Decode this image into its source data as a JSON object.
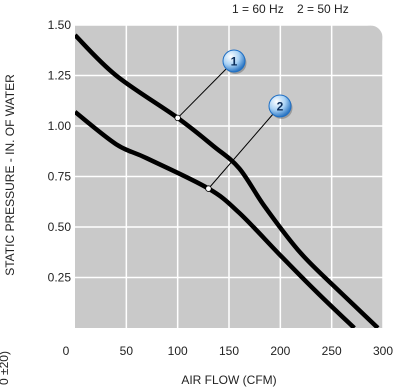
{
  "chart_data": {
    "type": "line",
    "xlabel": "AIR FLOW (CFM)",
    "ylabel": "STATIC PRESSURE - IN. OF WATER",
    "xlim": [
      0,
      300
    ],
    "ylim": [
      0,
      1.5
    ],
    "x_ticks": [
      "0",
      "50",
      "100",
      "150",
      "200",
      "250",
      "300"
    ],
    "y_ticks": [
      "1.50",
      "1.25",
      "1.00",
      "0.75",
      "0.50",
      "0.25"
    ],
    "grid": true,
    "legend": [
      {
        "key": "1",
        "text": "1 = 60 Hz"
      },
      {
        "key": "2",
        "text": "2 = 50 Hz"
      }
    ],
    "edge_text": "0 ±20)",
    "series": [
      {
        "key": "1",
        "points": [
          [
            0,
            1.45
          ],
          [
            40,
            1.25
          ],
          [
            100,
            1.04
          ],
          [
            135,
            0.9
          ],
          [
            160,
            0.79
          ],
          [
            185,
            0.6
          ],
          [
            220,
            0.37
          ],
          [
            260,
            0.17
          ],
          [
            295,
            0
          ]
        ],
        "callout_at": [
          100,
          1.04
        ]
      },
      {
        "key": "2",
        "points": [
          [
            0,
            1.07
          ],
          [
            40,
            0.91
          ],
          [
            70,
            0.84
          ],
          [
            130,
            0.69
          ],
          [
            160,
            0.57
          ],
          [
            200,
            0.36
          ],
          [
            235,
            0.18
          ],
          [
            272,
            0
          ]
        ],
        "callout_at": [
          130,
          0.69
        ]
      }
    ],
    "style": {
      "plot_bg": "#c9c9c9",
      "grid_color": "#ffffff",
      "line_color": "#000000",
      "badge_color": "#1f6fc4"
    }
  }
}
